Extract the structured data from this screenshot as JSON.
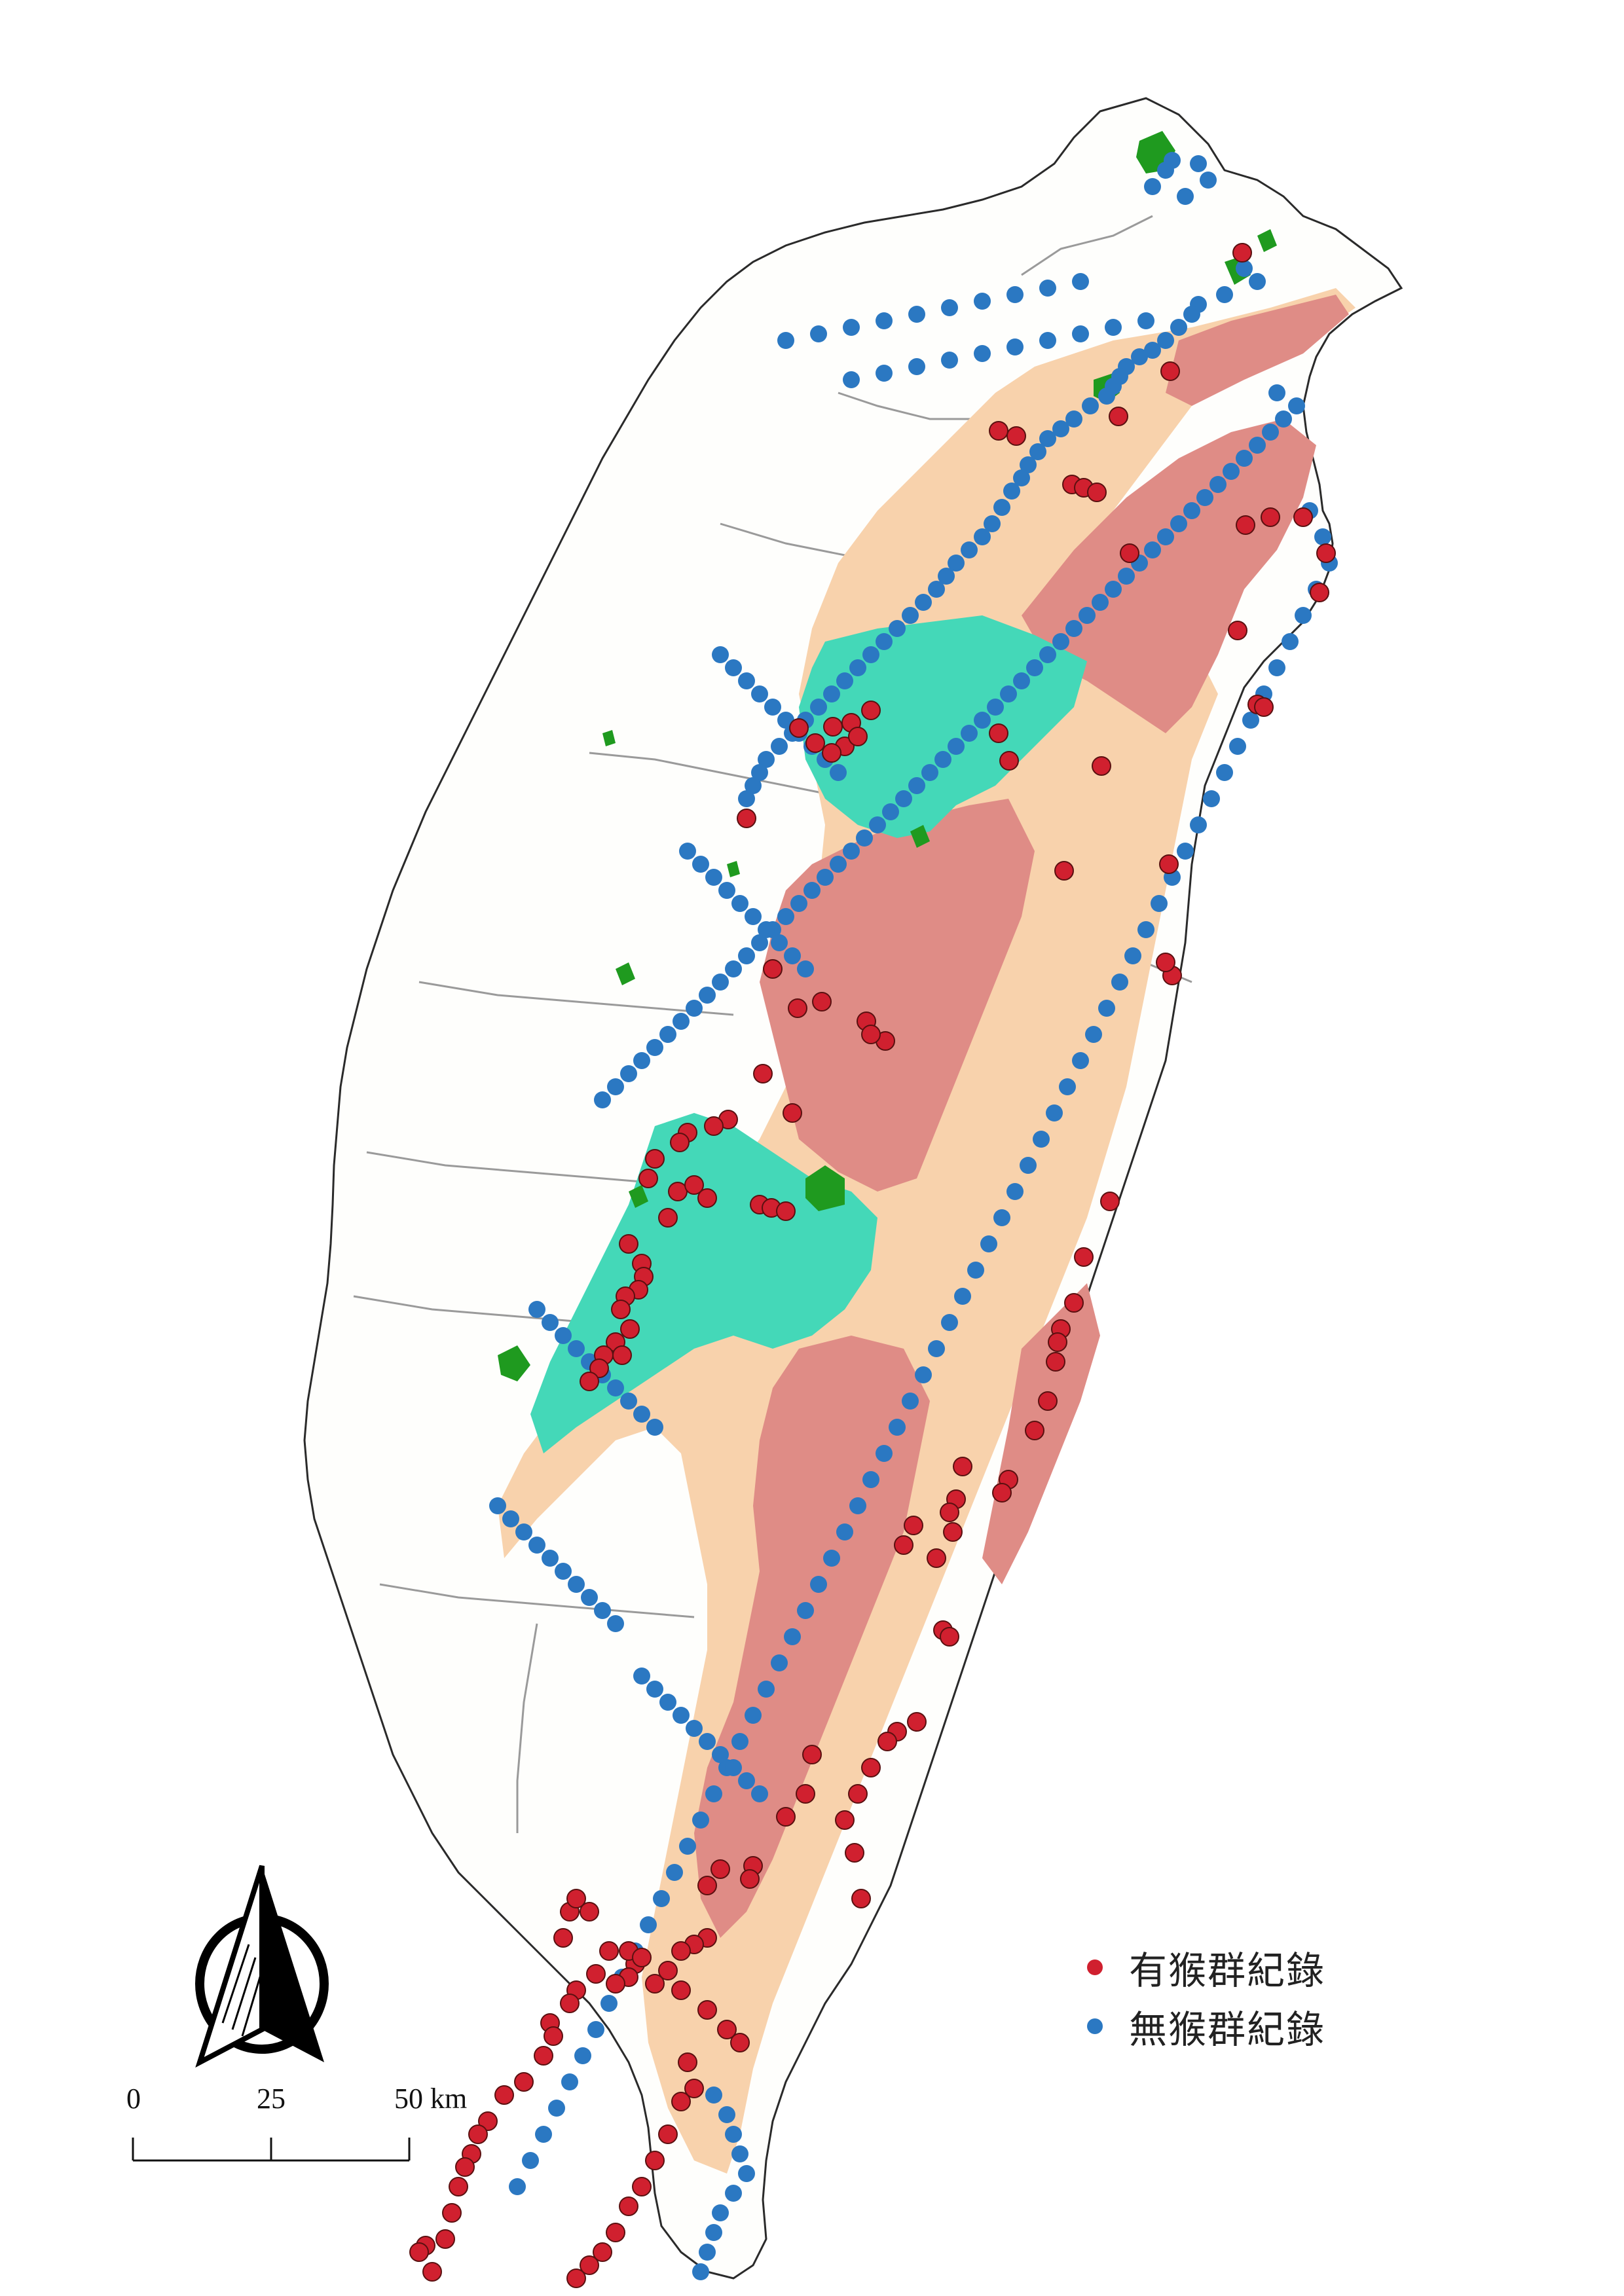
{
  "legend": {
    "items": [
      {
        "label": "有猴群紀錄",
        "color": "#d0202f"
      },
      {
        "label": "無猴群紀錄",
        "color": "#2b78c2"
      }
    ]
  },
  "scale_bar": {
    "tick0": "0",
    "tick1": "25",
    "tick2": "50",
    "unit": "km"
  },
  "colors": {
    "land": "#fefefc",
    "outline": "#2a2a2a",
    "county_lines": "#9a9a9a",
    "zone_peach": "#f8d2ac",
    "zone_rose": "#df8c86",
    "zone_teal": "#44d8b8",
    "zone_green": "#1f9a1f",
    "present": "#d0202f",
    "absent": "#2b78c2"
  },
  "north_arrow": {
    "icon": "north-arrow-icon"
  },
  "records": {
    "present": [
      [
        1897,
        386
      ],
      [
        1787,
        567
      ],
      [
        1708,
        636
      ],
      [
        1525,
        658
      ],
      [
        1552,
        666
      ],
      [
        1637,
        740
      ],
      [
        1655,
        745
      ],
      [
        1675,
        752
      ],
      [
        1940,
        790
      ],
      [
        1990,
        790
      ],
      [
        1902,
        802
      ],
      [
        2025,
        845
      ],
      [
        1725,
        845
      ],
      [
        2015,
        905
      ],
      [
        1890,
        963
      ],
      [
        1920,
        1076
      ],
      [
        1930,
        1080
      ],
      [
        1220,
        1112
      ],
      [
        1272,
        1110
      ],
      [
        1300,
        1104
      ],
      [
        1330,
        1085
      ],
      [
        1245,
        1135
      ],
      [
        1290,
        1140
      ],
      [
        1270,
        1150
      ],
      [
        1310,
        1125
      ],
      [
        1525,
        1120
      ],
      [
        1541,
        1162
      ],
      [
        1682,
        1170
      ],
      [
        1625,
        1330
      ],
      [
        1785,
        1320
      ],
      [
        1790,
        1490
      ],
      [
        1780,
        1470
      ],
      [
        1140,
        1250
      ],
      [
        1180,
        1480
      ],
      [
        1255,
        1530
      ],
      [
        1323,
        1560
      ],
      [
        1218,
        1540
      ],
      [
        1352,
        1590
      ],
      [
        1330,
        1580
      ],
      [
        1165,
        1640
      ],
      [
        1210,
        1700
      ],
      [
        1112,
        1710
      ],
      [
        1050,
        1730
      ],
      [
        1038,
        1745
      ],
      [
        1090,
        1720
      ],
      [
        1000,
        1770
      ],
      [
        990,
        1800
      ],
      [
        1035,
        1820
      ],
      [
        1060,
        1810
      ],
      [
        1080,
        1830
      ],
      [
        1160,
        1840
      ],
      [
        1178,
        1845
      ],
      [
        1200,
        1850
      ],
      [
        1020,
        1860
      ],
      [
        960,
        1900
      ],
      [
        980,
        1930
      ],
      [
        983,
        1950
      ],
      [
        975,
        1970
      ],
      [
        955,
        1980
      ],
      [
        948,
        2000
      ],
      [
        962,
        2030
      ],
      [
        940,
        2050
      ],
      [
        950,
        2070
      ],
      [
        922,
        2070
      ],
      [
        915,
        2090
      ],
      [
        900,
        2110
      ],
      [
        1695,
        1835
      ],
      [
        1655,
        1920
      ],
      [
        1640,
        1990
      ],
      [
        1620,
        2030
      ],
      [
        1615,
        2050
      ],
      [
        1612,
        2080
      ],
      [
        1600,
        2140
      ],
      [
        1580,
        2185
      ],
      [
        1540,
        2260
      ],
      [
        1530,
        2280
      ],
      [
        1470,
        2240
      ],
      [
        1460,
        2290
      ],
      [
        1450,
        2310
      ],
      [
        1430,
        2380
      ],
      [
        1455,
        2340
      ],
      [
        1395,
        2330
      ],
      [
        1380,
        2360
      ],
      [
        1440,
        2490
      ],
      [
        1450,
        2500
      ],
      [
        1400,
        2630
      ],
      [
        1370,
        2645
      ],
      [
        1355,
        2660
      ],
      [
        1330,
        2700
      ],
      [
        1310,
        2740
      ],
      [
        1290,
        2780
      ],
      [
        1240,
        2680
      ],
      [
        1230,
        2740
      ],
      [
        1200,
        2775
      ],
      [
        1305,
        2830
      ],
      [
        1315,
        2900
      ],
      [
        1150,
        2850
      ],
      [
        1145,
        2870
      ],
      [
        1100,
        2855
      ],
      [
        1080,
        2880
      ],
      [
        1080,
        2960
      ],
      [
        1060,
        2970
      ],
      [
        1040,
        2980
      ],
      [
        1020,
        3010
      ],
      [
        1000,
        3030
      ],
      [
        970,
        3000
      ],
      [
        960,
        3020
      ],
      [
        940,
        3030
      ],
      [
        910,
        3015
      ],
      [
        860,
        2960
      ],
      [
        870,
        2920
      ],
      [
        880,
        2900
      ],
      [
        900,
        2920
      ],
      [
        960,
        2980
      ],
      [
        980,
        2990
      ],
      [
        930,
        2980
      ],
      [
        880,
        3040
      ],
      [
        870,
        3060
      ],
      [
        840,
        3090
      ],
      [
        845,
        3110
      ],
      [
        830,
        3140
      ],
      [
        800,
        3180
      ],
      [
        770,
        3200
      ],
      [
        745,
        3240
      ],
      [
        730,
        3260
      ],
      [
        720,
        3290
      ],
      [
        710,
        3310
      ],
      [
        700,
        3340
      ],
      [
        690,
        3380
      ],
      [
        680,
        3420
      ],
      [
        650,
        3430
      ],
      [
        640,
        3440
      ],
      [
        660,
        3470
      ],
      [
        1040,
        3040
      ],
      [
        1080,
        3070
      ],
      [
        1110,
        3100
      ],
      [
        1130,
        3120
      ],
      [
        1050,
        3150
      ],
      [
        1060,
        3190
      ],
      [
        1040,
        3210
      ],
      [
        1020,
        3260
      ],
      [
        1000,
        3300
      ],
      [
        980,
        3340
      ],
      [
        960,
        3370
      ],
      [
        940,
        3410
      ],
      [
        920,
        3440
      ],
      [
        900,
        3460
      ],
      [
        880,
        3480
      ]
    ],
    "absent": [
      [
        1790,
        245
      ],
      [
        1780,
        260
      ],
      [
        1760,
        285
      ],
      [
        1830,
        250
      ],
      [
        1845,
        275
      ],
      [
        1810,
        300
      ],
      [
        1900,
        410
      ],
      [
        1920,
        430
      ],
      [
        1870,
        450
      ],
      [
        1830,
        465
      ],
      [
        1820,
        480
      ],
      [
        1800,
        500
      ],
      [
        1780,
        520
      ],
      [
        1760,
        535
      ],
      [
        1740,
        545
      ],
      [
        1720,
        560
      ],
      [
        1710,
        575
      ],
      [
        1700,
        590
      ],
      [
        1690,
        605
      ],
      [
        1665,
        620
      ],
      [
        1640,
        640
      ],
      [
        1620,
        655
      ],
      [
        1600,
        670
      ],
      [
        1585,
        690
      ],
      [
        1570,
        710
      ],
      [
        1560,
        730
      ],
      [
        1545,
        750
      ],
      [
        1530,
        775
      ],
      [
        1515,
        800
      ],
      [
        1500,
        820
      ],
      [
        1480,
        840
      ],
      [
        1460,
        860
      ],
      [
        1445,
        880
      ],
      [
        1430,
        900
      ],
      [
        1410,
        920
      ],
      [
        1390,
        940
      ],
      [
        1370,
        960
      ],
      [
        1350,
        980
      ],
      [
        1330,
        1000
      ],
      [
        1310,
        1020
      ],
      [
        1290,
        1040
      ],
      [
        1270,
        1060
      ],
      [
        1250,
        1080
      ],
      [
        1230,
        1100
      ],
      [
        1210,
        1120
      ],
      [
        1190,
        1140
      ],
      [
        1170,
        1160
      ],
      [
        1160,
        1180
      ],
      [
        1150,
        1200
      ],
      [
        1140,
        1220
      ],
      [
        1950,
        600
      ],
      [
        1980,
        620
      ],
      [
        1960,
        640
      ],
      [
        1940,
        660
      ],
      [
        1920,
        680
      ],
      [
        1900,
        700
      ],
      [
        1880,
        720
      ],
      [
        1860,
        740
      ],
      [
        1840,
        760
      ],
      [
        1820,
        780
      ],
      [
        1800,
        800
      ],
      [
        1780,
        820
      ],
      [
        1760,
        840
      ],
      [
        1740,
        860
      ],
      [
        1720,
        880
      ],
      [
        1700,
        900
      ],
      [
        1680,
        920
      ],
      [
        1660,
        940
      ],
      [
        1640,
        960
      ],
      [
        1620,
        980
      ],
      [
        1600,
        1000
      ],
      [
        1580,
        1020
      ],
      [
        1560,
        1040
      ],
      [
        1540,
        1060
      ],
      [
        1520,
        1080
      ],
      [
        1500,
        1100
      ],
      [
        1480,
        1120
      ],
      [
        1460,
        1140
      ],
      [
        1440,
        1160
      ],
      [
        1420,
        1180
      ],
      [
        1400,
        1200
      ],
      [
        1380,
        1220
      ],
      [
        1360,
        1240
      ],
      [
        1340,
        1260
      ],
      [
        1320,
        1280
      ],
      [
        1300,
        1300
      ],
      [
        1280,
        1320
      ],
      [
        1260,
        1340
      ],
      [
        1240,
        1360
      ],
      [
        1220,
        1380
      ],
      [
        1200,
        1400
      ],
      [
        1180,
        1420
      ],
      [
        1160,
        1440
      ],
      [
        1140,
        1460
      ],
      [
        1120,
        1480
      ],
      [
        1100,
        1500
      ],
      [
        1080,
        1520
      ],
      [
        1060,
        1540
      ],
      [
        1040,
        1560
      ],
      [
        1020,
        1580
      ],
      [
        1000,
        1600
      ],
      [
        980,
        1620
      ],
      [
        960,
        1640
      ],
      [
        940,
        1660
      ],
      [
        920,
        1680
      ],
      [
        2000,
        780
      ],
      [
        2020,
        820
      ],
      [
        2030,
        860
      ],
      [
        2010,
        900
      ],
      [
        1990,
        940
      ],
      [
        1970,
        980
      ],
      [
        1950,
        1020
      ],
      [
        1930,
        1060
      ],
      [
        1910,
        1100
      ],
      [
        1890,
        1140
      ],
      [
        1870,
        1180
      ],
      [
        1850,
        1220
      ],
      [
        1830,
        1260
      ],
      [
        1810,
        1300
      ],
      [
        1790,
        1340
      ],
      [
        1770,
        1380
      ],
      [
        1750,
        1420
      ],
      [
        1730,
        1460
      ],
      [
        1710,
        1500
      ],
      [
        1690,
        1540
      ],
      [
        1670,
        1580
      ],
      [
        1650,
        1620
      ],
      [
        1630,
        1660
      ],
      [
        1610,
        1700
      ],
      [
        1590,
        1740
      ],
      [
        1570,
        1780
      ],
      [
        1550,
        1820
      ],
      [
        1530,
        1860
      ],
      [
        1510,
        1900
      ],
      [
        1490,
        1940
      ],
      [
        1470,
        1980
      ],
      [
        1450,
        2020
      ],
      [
        1430,
        2060
      ],
      [
        1410,
        2100
      ],
      [
        1390,
        2140
      ],
      [
        1370,
        2180
      ],
      [
        1350,
        2220
      ],
      [
        1330,
        2260
      ],
      [
        1310,
        2300
      ],
      [
        1290,
        2340
      ],
      [
        1270,
        2380
      ],
      [
        1250,
        2420
      ],
      [
        1230,
        2460
      ],
      [
        1210,
        2500
      ],
      [
        1190,
        2540
      ],
      [
        1170,
        2580
      ],
      [
        1150,
        2620
      ],
      [
        1130,
        2660
      ],
      [
        1110,
        2700
      ],
      [
        1090,
        2740
      ],
      [
        1070,
        2780
      ],
      [
        1050,
        2820
      ],
      [
        1030,
        2860
      ],
      [
        1010,
        2900
      ],
      [
        990,
        2940
      ],
      [
        970,
        2980
      ],
      [
        950,
        3020
      ],
      [
        930,
        3060
      ],
      [
        910,
        3100
      ],
      [
        890,
        3140
      ],
      [
        870,
        3180
      ],
      [
        850,
        3220
      ],
      [
        830,
        3260
      ],
      [
        810,
        3300
      ],
      [
        790,
        3340
      ],
      [
        1200,
        520
      ],
      [
        1250,
        510
      ],
      [
        1300,
        500
      ],
      [
        1350,
        490
      ],
      [
        1400,
        480
      ],
      [
        1450,
        470
      ],
      [
        1500,
        460
      ],
      [
        1550,
        450
      ],
      [
        1600,
        440
      ],
      [
        1650,
        430
      ],
      [
        1300,
        580
      ],
      [
        1350,
        570
      ],
      [
        1400,
        560
      ],
      [
        1450,
        550
      ],
      [
        1500,
        540
      ],
      [
        1550,
        530
      ],
      [
        1600,
        520
      ],
      [
        1650,
        510
      ],
      [
        1700,
        500
      ],
      [
        1750,
        490
      ],
      [
        1100,
        1000
      ],
      [
        1120,
        1020
      ],
      [
        1140,
        1040
      ],
      [
        1160,
        1060
      ],
      [
        1180,
        1080
      ],
      [
        1200,
        1100
      ],
      [
        1220,
        1120
      ],
      [
        1240,
        1140
      ],
      [
        1260,
        1160
      ],
      [
        1280,
        1180
      ],
      [
        1050,
        1300
      ],
      [
        1070,
        1320
      ],
      [
        1090,
        1340
      ],
      [
        1110,
        1360
      ],
      [
        1130,
        1380
      ],
      [
        1150,
        1400
      ],
      [
        1170,
        1420
      ],
      [
        1190,
        1440
      ],
      [
        1210,
        1460
      ],
      [
        1230,
        1480
      ],
      [
        820,
        2000
      ],
      [
        840,
        2020
      ],
      [
        860,
        2040
      ],
      [
        880,
        2060
      ],
      [
        900,
        2080
      ],
      [
        920,
        2100
      ],
      [
        940,
        2120
      ],
      [
        960,
        2140
      ],
      [
        980,
        2160
      ],
      [
        1000,
        2180
      ],
      [
        760,
        2300
      ],
      [
        780,
        2320
      ],
      [
        800,
        2340
      ],
      [
        820,
        2360
      ],
      [
        840,
        2380
      ],
      [
        860,
        2400
      ],
      [
        880,
        2420
      ],
      [
        900,
        2440
      ],
      [
        920,
        2460
      ],
      [
        940,
        2480
      ],
      [
        980,
        2560
      ],
      [
        1000,
        2580
      ],
      [
        1020,
        2600
      ],
      [
        1040,
        2620
      ],
      [
        1060,
        2640
      ],
      [
        1080,
        2660
      ],
      [
        1100,
        2680
      ],
      [
        1120,
        2700
      ],
      [
        1140,
        2720
      ],
      [
        1160,
        2740
      ],
      [
        1090,
        3200
      ],
      [
        1110,
        3230
      ],
      [
        1120,
        3260
      ],
      [
        1130,
        3290
      ],
      [
        1140,
        3320
      ],
      [
        1120,
        3350
      ],
      [
        1100,
        3380
      ],
      [
        1090,
        3410
      ],
      [
        1080,
        3440
      ],
      [
        1070,
        3470
      ]
    ]
  }
}
